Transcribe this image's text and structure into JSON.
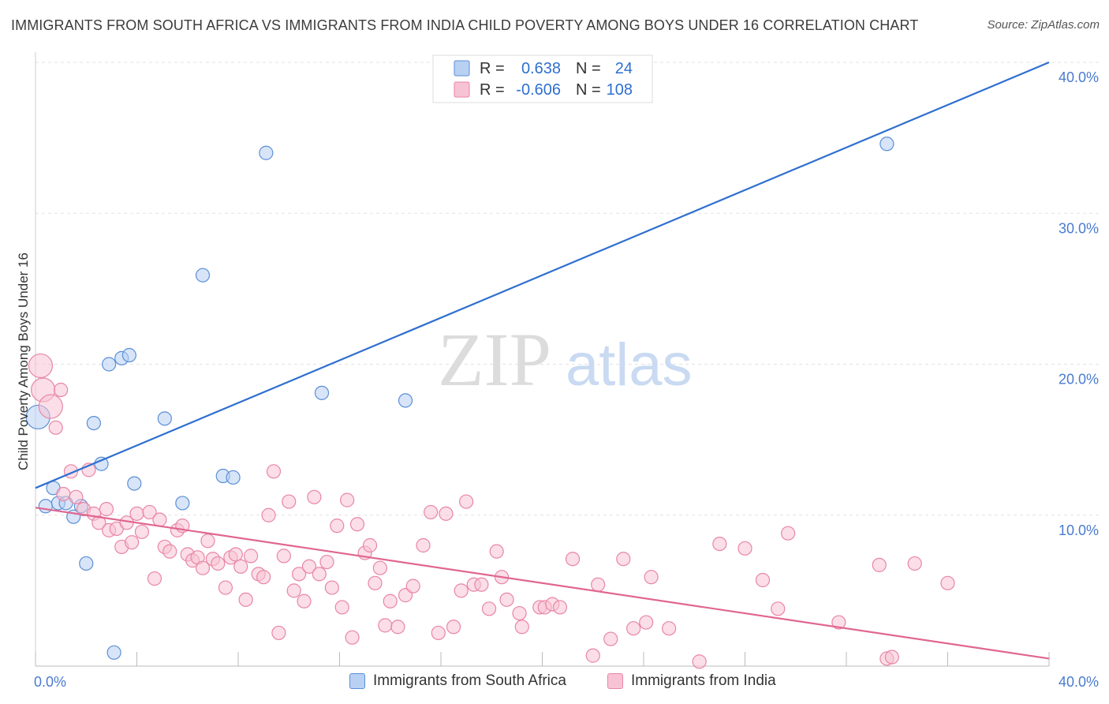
{
  "title": "IMMIGRANTS FROM SOUTH AFRICA VS IMMIGRANTS FROM INDIA CHILD POVERTY AMONG BOYS UNDER 16 CORRELATION CHART",
  "source": "Source: ZipAtlas.com",
  "watermark": {
    "part1": "ZIP",
    "part2": "atlas"
  },
  "colors": {
    "south_africa_fill": "#b8d0f2",
    "south_africa_stroke": "#5b8fd6",
    "south_africa_line": "#2f6fcf",
    "india_fill": "#f7c3d4",
    "india_stroke": "#e886a6",
    "india_line": "#e06692",
    "tick_text": "#4a7bd0"
  },
  "legend": {
    "rows": [
      {
        "r_label": "R =",
        "r_value": "0.638",
        "n_label": "N =",
        "n_value": "24"
      },
      {
        "r_label": "R =",
        "r_value": "-0.606",
        "n_label": "N =",
        "n_value": "108"
      }
    ],
    "bottom": [
      "Immigrants from South Africa",
      "Immigrants from India"
    ]
  },
  "chart_data": {
    "type": "scatter",
    "title": "IMMIGRANTS FROM SOUTH AFRICA VS IMMIGRANTS FROM INDIA CHILD POVERTY AMONG BOYS UNDER 16 CORRELATION CHART",
    "xlabel": "",
    "ylabel": "Child Poverty Among Boys Under 16",
    "xlim": [
      0,
      40
    ],
    "ylim": [
      0,
      40
    ],
    "x_tick_labels": [
      "0.0%",
      "40.0%"
    ],
    "y_ticks": [
      10,
      20,
      30,
      40
    ],
    "y_tick_labels": [
      "10.0%",
      "20.0%",
      "30.0%",
      "40.0%"
    ],
    "grid": true,
    "legend_position": "top-center",
    "series": [
      {
        "name": "Immigrants from South Africa",
        "r": 0.638,
        "n": 24,
        "trend": {
          "x": [
            0,
            40
          ],
          "y": [
            11.8,
            40.0
          ]
        },
        "points": [
          {
            "x": 0.1,
            "y": 16.5,
            "size": "large"
          },
          {
            "x": 0.4,
            "y": 10.6
          },
          {
            "x": 0.7,
            "y": 11.8
          },
          {
            "x": 0.9,
            "y": 10.8
          },
          {
            "x": 1.2,
            "y": 10.8
          },
          {
            "x": 1.5,
            "y": 9.9
          },
          {
            "x": 1.8,
            "y": 10.6
          },
          {
            "x": 2.0,
            "y": 6.8
          },
          {
            "x": 2.3,
            "y": 16.1
          },
          {
            "x": 2.6,
            "y": 13.4
          },
          {
            "x": 2.9,
            "y": 20.0
          },
          {
            "x": 3.1,
            "y": 0.9
          },
          {
            "x": 3.4,
            "y": 20.4
          },
          {
            "x": 3.7,
            "y": 20.6
          },
          {
            "x": 3.9,
            "y": 12.1
          },
          {
            "x": 5.1,
            "y": 16.4
          },
          {
            "x": 5.8,
            "y": 10.8
          },
          {
            "x": 6.6,
            "y": 25.9
          },
          {
            "x": 7.4,
            "y": 12.6
          },
          {
            "x": 7.8,
            "y": 12.5
          },
          {
            "x": 9.1,
            "y": 34.0
          },
          {
            "x": 11.3,
            "y": 18.1
          },
          {
            "x": 14.6,
            "y": 17.6
          },
          {
            "x": 33.6,
            "y": 34.6
          }
        ]
      },
      {
        "name": "Immigrants from India",
        "r": -0.606,
        "n": 108,
        "trend": {
          "x": [
            0,
            40
          ],
          "y": [
            10.5,
            0.5
          ]
        },
        "points": [
          {
            "x": 0.2,
            "y": 19.9,
            "size": "large"
          },
          {
            "x": 0.3,
            "y": 18.3,
            "size": "large"
          },
          {
            "x": 0.6,
            "y": 17.2,
            "size": "large"
          },
          {
            "x": 1.0,
            "y": 18.3
          },
          {
            "x": 0.8,
            "y": 15.8
          },
          {
            "x": 1.1,
            "y": 11.4
          },
          {
            "x": 1.4,
            "y": 12.9
          },
          {
            "x": 1.6,
            "y": 11.2
          },
          {
            "x": 1.9,
            "y": 10.4
          },
          {
            "x": 2.1,
            "y": 13.0
          },
          {
            "x": 2.3,
            "y": 10.1
          },
          {
            "x": 2.5,
            "y": 9.5
          },
          {
            "x": 2.8,
            "y": 10.4
          },
          {
            "x": 2.9,
            "y": 9.0
          },
          {
            "x": 3.2,
            "y": 9.1
          },
          {
            "x": 3.4,
            "y": 7.9
          },
          {
            "x": 3.6,
            "y": 9.5
          },
          {
            "x": 3.8,
            "y": 8.2
          },
          {
            "x": 4.0,
            "y": 10.1
          },
          {
            "x": 4.2,
            "y": 8.9
          },
          {
            "x": 4.5,
            "y": 10.2
          },
          {
            "x": 4.7,
            "y": 5.8
          },
          {
            "x": 4.9,
            "y": 9.7
          },
          {
            "x": 5.1,
            "y": 7.9
          },
          {
            "x": 5.3,
            "y": 7.6
          },
          {
            "x": 5.6,
            "y": 9.0
          },
          {
            "x": 5.8,
            "y": 9.3
          },
          {
            "x": 6.0,
            "y": 7.4
          },
          {
            "x": 6.2,
            "y": 7.0
          },
          {
            "x": 6.4,
            "y": 7.2
          },
          {
            "x": 6.6,
            "y": 6.5
          },
          {
            "x": 6.8,
            "y": 8.3
          },
          {
            "x": 7.0,
            "y": 7.1
          },
          {
            "x": 7.2,
            "y": 6.8
          },
          {
            "x": 7.5,
            "y": 5.2
          },
          {
            "x": 7.7,
            "y": 7.2
          },
          {
            "x": 7.9,
            "y": 7.4
          },
          {
            "x": 8.1,
            "y": 6.6
          },
          {
            "x": 8.3,
            "y": 4.4
          },
          {
            "x": 8.5,
            "y": 7.3
          },
          {
            "x": 8.8,
            "y": 6.1
          },
          {
            "x": 9.0,
            "y": 5.9
          },
          {
            "x": 9.2,
            "y": 10.0
          },
          {
            "x": 9.4,
            "y": 12.9
          },
          {
            "x": 9.6,
            "y": 2.2
          },
          {
            "x": 9.8,
            "y": 7.3
          },
          {
            "x": 10.0,
            "y": 10.9
          },
          {
            "x": 10.2,
            "y": 5.0
          },
          {
            "x": 10.4,
            "y": 6.1
          },
          {
            "x": 10.6,
            "y": 4.3
          },
          {
            "x": 10.8,
            "y": 6.6
          },
          {
            "x": 11.0,
            "y": 11.2
          },
          {
            "x": 11.2,
            "y": 6.1
          },
          {
            "x": 11.5,
            "y": 6.9
          },
          {
            "x": 11.7,
            "y": 5.2
          },
          {
            "x": 11.9,
            "y": 9.3
          },
          {
            "x": 12.1,
            "y": 3.9
          },
          {
            "x": 12.3,
            "y": 11.0
          },
          {
            "x": 12.5,
            "y": 1.9
          },
          {
            "x": 12.7,
            "y": 9.4
          },
          {
            "x": 13.0,
            "y": 7.5
          },
          {
            "x": 13.2,
            "y": 8.0
          },
          {
            "x": 13.4,
            "y": 5.5
          },
          {
            "x": 13.6,
            "y": 6.5
          },
          {
            "x": 13.8,
            "y": 2.7
          },
          {
            "x": 14.0,
            "y": 4.3
          },
          {
            "x": 14.3,
            "y": 2.6
          },
          {
            "x": 14.6,
            "y": 4.7
          },
          {
            "x": 14.9,
            "y": 5.3
          },
          {
            "x": 15.3,
            "y": 8.0
          },
          {
            "x": 15.6,
            "y": 10.2
          },
          {
            "x": 15.9,
            "y": 2.2
          },
          {
            "x": 16.2,
            "y": 10.1
          },
          {
            "x": 16.5,
            "y": 2.6
          },
          {
            "x": 16.8,
            "y": 5.0
          },
          {
            "x": 17.0,
            "y": 10.9
          },
          {
            "x": 17.3,
            "y": 5.4
          },
          {
            "x": 17.6,
            "y": 5.4
          },
          {
            "x": 17.9,
            "y": 3.8
          },
          {
            "x": 18.2,
            "y": 7.6
          },
          {
            "x": 18.4,
            "y": 5.9
          },
          {
            "x": 18.6,
            "y": 4.4
          },
          {
            "x": 19.1,
            "y": 3.5
          },
          {
            "x": 19.2,
            "y": 2.6
          },
          {
            "x": 19.9,
            "y": 3.9
          },
          {
            "x": 20.1,
            "y": 3.9
          },
          {
            "x": 20.4,
            "y": 4.1
          },
          {
            "x": 20.7,
            "y": 3.9
          },
          {
            "x": 21.2,
            "y": 7.1
          },
          {
            "x": 22.0,
            "y": 0.7
          },
          {
            "x": 22.2,
            "y": 5.4
          },
          {
            "x": 22.7,
            "y": 1.8
          },
          {
            "x": 23.2,
            "y": 7.1
          },
          {
            "x": 23.6,
            "y": 2.5
          },
          {
            "x": 24.1,
            "y": 2.9
          },
          {
            "x": 24.3,
            "y": 5.9
          },
          {
            "x": 25.0,
            "y": 2.5
          },
          {
            "x": 26.2,
            "y": 0.3
          },
          {
            "x": 27.0,
            "y": 8.1
          },
          {
            "x": 28.0,
            "y": 7.8
          },
          {
            "x": 28.7,
            "y": 5.7
          },
          {
            "x": 29.3,
            "y": 3.8
          },
          {
            "x": 29.7,
            "y": 8.8
          },
          {
            "x": 31.7,
            "y": 2.9
          },
          {
            "x": 33.3,
            "y": 6.7
          },
          {
            "x": 33.6,
            "y": 0.5
          },
          {
            "x": 33.8,
            "y": 0.6
          },
          {
            "x": 34.7,
            "y": 6.8
          },
          {
            "x": 36.0,
            "y": 5.5
          }
        ]
      }
    ]
  }
}
